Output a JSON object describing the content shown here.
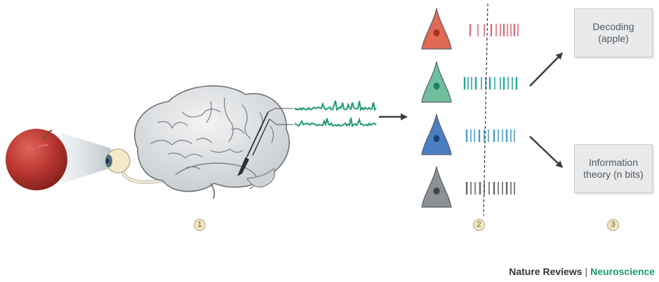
{
  "boxes": {
    "decoding": "Decoding\n(apple)",
    "information": "Information\ntheory (n bits)"
  },
  "steps": [
    "1",
    "2",
    "3"
  ],
  "credit": {
    "journal": "Nature Reviews",
    "separator": "|",
    "field": "Neuroscience"
  },
  "colors": {
    "apple": "#b8352f",
    "eye": "#f3ebc6",
    "brain": "#dcdfe2",
    "signal": "#1d9a73",
    "neuron_red": "#e06a55",
    "neuron_green": "#6fbf9f",
    "neuron_blue": "#4b7fc4",
    "neuron_gray": "#8c9196",
    "spikes_red": "#d9707c",
    "spikes_teal": "#2aa79b",
    "spikes_blue": "#4f9ccc",
    "spikes_gray": "#666666"
  },
  "neurons": [
    {
      "color_key": "neuron_red",
      "spike_key": "spikes_red"
    },
    {
      "color_key": "neuron_green",
      "spike_key": "spikes_teal"
    },
    {
      "color_key": "neuron_blue",
      "spike_key": "spikes_blue"
    },
    {
      "color_key": "neuron_gray",
      "spike_key": "spikes_gray"
    }
  ]
}
